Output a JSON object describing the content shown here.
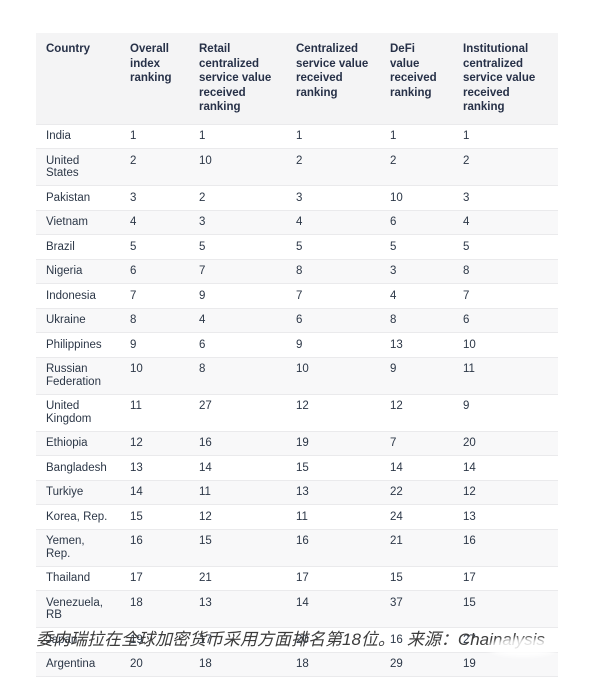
{
  "chart_data": {
    "type": "table",
    "columns": [
      "Country",
      "Overall index ranking",
      "Retail centralized service value received ranking",
      "Centralized service value received ranking",
      "DeFi value received ranking",
      "Institutional centralized service value received ranking"
    ],
    "rows": [
      {
        "country": "India",
        "values": [
          1,
          1,
          1,
          1,
          1
        ]
      },
      {
        "country": "United States",
        "values": [
          2,
          10,
          2,
          2,
          2
        ]
      },
      {
        "country": "Pakistan",
        "values": [
          3,
          2,
          3,
          10,
          3
        ]
      },
      {
        "country": "Vietnam",
        "values": [
          4,
          3,
          4,
          6,
          4
        ]
      },
      {
        "country": "Brazil",
        "values": [
          5,
          5,
          5,
          5,
          5
        ]
      },
      {
        "country": "Nigeria",
        "values": [
          6,
          7,
          8,
          3,
          8
        ]
      },
      {
        "country": "Indonesia",
        "values": [
          7,
          9,
          7,
          4,
          7
        ]
      },
      {
        "country": "Ukraine",
        "values": [
          8,
          4,
          6,
          8,
          6
        ]
      },
      {
        "country": "Philippines",
        "values": [
          9,
          6,
          9,
          13,
          10
        ]
      },
      {
        "country": "Russian Federation",
        "values": [
          10,
          8,
          10,
          9,
          11
        ]
      },
      {
        "country": "United Kingdom",
        "values": [
          11,
          27,
          12,
          12,
          9
        ]
      },
      {
        "country": "Ethiopia",
        "values": [
          12,
          16,
          19,
          7,
          20
        ]
      },
      {
        "country": "Bangladesh",
        "values": [
          13,
          14,
          15,
          14,
          14
        ]
      },
      {
        "country": "Turkiye",
        "values": [
          14,
          11,
          13,
          22,
          12
        ]
      },
      {
        "country": "Korea, Rep.",
        "values": [
          15,
          12,
          11,
          24,
          13
        ]
      },
      {
        "country": "Yemen, Rep.",
        "values": [
          16,
          15,
          16,
          21,
          16
        ]
      },
      {
        "country": "Thailand",
        "values": [
          17,
          21,
          17,
          15,
          17
        ]
      },
      {
        "country": "Venezuela, RB",
        "values": [
          18,
          13,
          14,
          37,
          15
        ]
      },
      {
        "country": "Japan",
        "values": [
          19,
          17,
          20,
          16,
          27
        ]
      },
      {
        "country": "Argentina",
        "values": [
          20,
          18,
          18,
          29,
          19
        ]
      }
    ],
    "title": "",
    "layout": {
      "header_background": "#f4f4f5",
      "alt_row_background": "#f8f8f9",
      "text_color": "#2c3747"
    }
  },
  "caption": {
    "text": "委内瑞拉在全球加密货币采用方面排名第18位。",
    "source_prefix": "来源：",
    "source_name": "Chainalysis"
  }
}
